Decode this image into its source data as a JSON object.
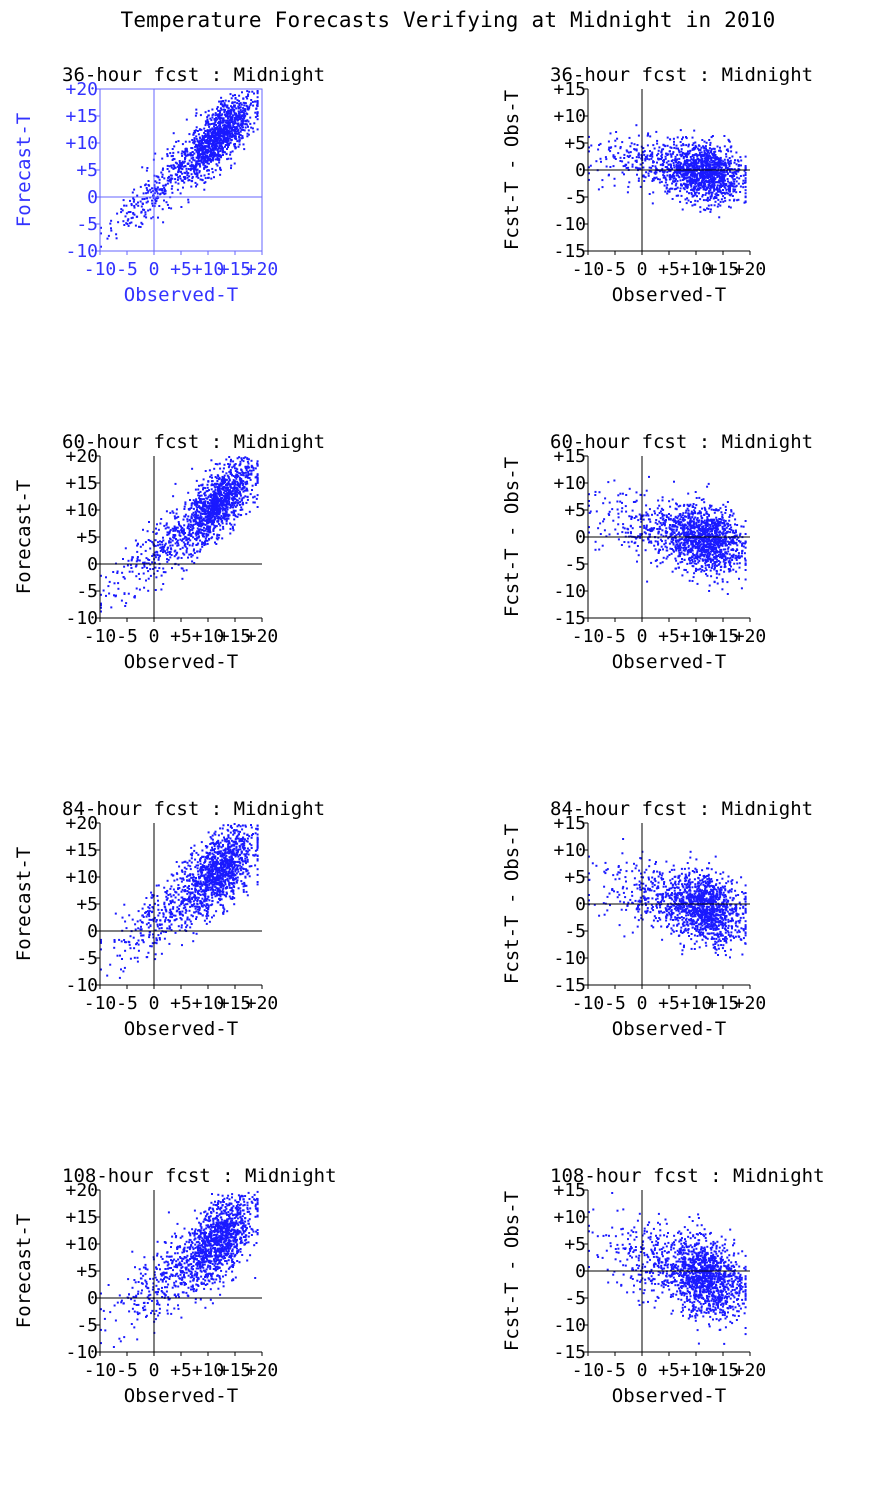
{
  "figure_title": "Temperature Forecasts Verifying at Midnight in 2010",
  "colors": {
    "points": "#1a1aff",
    "axis": "#000000",
    "highlight_axis": "#6666ff",
    "highlight_text": "#3333ff"
  },
  "chart_data": [
    {
      "type": "scatter",
      "panel": "36h-scatter",
      "title": "36-hour fcst : Midnight",
      "xlabel": "Observed-T",
      "ylabel": "Forecast-T",
      "xlim": [
        -10,
        20
      ],
      "ylim": [
        -10,
        20
      ],
      "xticks": [
        "-10",
        "-5",
        "0",
        "+5",
        "+10",
        "+15",
        "+20"
      ],
      "yticks": [
        "-10",
        "-5",
        "0",
        "+5",
        "+10",
        "+15",
        "+20"
      ],
      "highlighted": true,
      "grid": false,
      "series": [
        {
          "relation": "forecast vs observed",
          "approx_slope": 0.85,
          "approx_intercept": 1.5,
          "spread_sd": 2.6,
          "n_points_approx": 1500
        }
      ]
    },
    {
      "type": "scatter",
      "panel": "36h-error",
      "title": "36-hour fcst : Midnight",
      "xlabel": "Observed-T",
      "ylabel": "Fcst-T - Obs-T",
      "xlim": [
        -10,
        20
      ],
      "ylim": [
        -15,
        15
      ],
      "xticks": [
        "-10",
        "-5",
        "0",
        "+5",
        "+10",
        "+15",
        "+20"
      ],
      "yticks": [
        "-15",
        "-10",
        "-5",
        "0",
        "+5",
        "+10",
        "+15"
      ],
      "highlighted": false,
      "grid": false,
      "series": [
        {
          "relation": "error vs observed",
          "approx_slope": -0.15,
          "approx_intercept": 1.5,
          "spread_sd": 2.6,
          "n_points_approx": 1500
        }
      ]
    },
    {
      "type": "scatter",
      "panel": "60h-scatter",
      "title": "60-hour fcst : Midnight",
      "xlabel": "Observed-T",
      "ylabel": "Forecast-T",
      "xlim": [
        -10,
        20
      ],
      "ylim": [
        -10,
        20
      ],
      "xticks": [
        "-10",
        "-5",
        "0",
        "+5",
        "+10",
        "+15",
        "+20"
      ],
      "yticks": [
        "-10",
        "-5",
        "0",
        "+5",
        "+10",
        "+15",
        "+20"
      ],
      "highlighted": false,
      "grid": false,
      "series": [
        {
          "relation": "forecast vs observed",
          "approx_slope": 0.8,
          "approx_intercept": 2.0,
          "spread_sd": 3.0,
          "n_points_approx": 1500
        }
      ]
    },
    {
      "type": "scatter",
      "panel": "60h-error",
      "title": "60-hour fcst : Midnight",
      "xlabel": "Observed-T",
      "ylabel": "Fcst-T - Obs-T",
      "xlim": [
        -10,
        20
      ],
      "ylim": [
        -15,
        15
      ],
      "xticks": [
        "-10",
        "-5",
        "0",
        "+5",
        "+10",
        "+15",
        "+20"
      ],
      "yticks": [
        "-15",
        "-10",
        "-5",
        "0",
        "+5",
        "+10",
        "+15"
      ],
      "highlighted": false,
      "grid": false,
      "series": [
        {
          "relation": "error vs observed",
          "approx_slope": -0.2,
          "approx_intercept": 2.0,
          "spread_sd": 3.0,
          "n_points_approx": 1500
        }
      ]
    },
    {
      "type": "scatter",
      "panel": "84h-scatter",
      "title": "84-hour fcst : Midnight",
      "xlabel": "Observed-T",
      "ylabel": "Forecast-T",
      "xlim": [
        -10,
        20
      ],
      "ylim": [
        -10,
        20
      ],
      "xticks": [
        "-10",
        "-5",
        "0",
        "+5",
        "+10",
        "+15",
        "+20"
      ],
      "yticks": [
        "-10",
        "-5",
        "0",
        "+5",
        "+10",
        "+15",
        "+20"
      ],
      "highlighted": false,
      "grid": false,
      "series": [
        {
          "relation": "forecast vs observed",
          "approx_slope": 0.75,
          "approx_intercept": 2.3,
          "spread_sd": 3.3,
          "n_points_approx": 1500
        }
      ]
    },
    {
      "type": "scatter",
      "panel": "84h-error",
      "title": "84-hour fcst : Midnight",
      "xlabel": "Observed-T",
      "ylabel": "Fcst-T - Obs-T",
      "xlim": [
        -10,
        20
      ],
      "ylim": [
        -15,
        15
      ],
      "xticks": [
        "-10",
        "-5",
        "0",
        "+5",
        "+10",
        "+15",
        "+20"
      ],
      "yticks": [
        "-15",
        "-10",
        "-5",
        "0",
        "+5",
        "+10",
        "+15"
      ],
      "highlighted": false,
      "grid": false,
      "series": [
        {
          "relation": "error vs observed",
          "approx_slope": -0.25,
          "approx_intercept": 2.3,
          "spread_sd": 3.3,
          "n_points_approx": 1500
        }
      ]
    },
    {
      "type": "scatter",
      "panel": "108h-scatter",
      "title": "108-hour fcst : Midnight",
      "xlabel": "Observed-T",
      "ylabel": "Forecast-T",
      "xlim": [
        -10,
        20
      ],
      "ylim": [
        -10,
        20
      ],
      "xticks": [
        "-10",
        "-5",
        "0",
        "+5",
        "+10",
        "+15",
        "+20"
      ],
      "yticks": [
        "-10",
        "-5",
        "0",
        "+5",
        "+10",
        "+15",
        "+20"
      ],
      "highlighted": false,
      "grid": false,
      "series": [
        {
          "relation": "forecast vs observed",
          "approx_slope": 0.7,
          "approx_intercept": 2.5,
          "spread_sd": 3.6,
          "n_points_approx": 1500
        }
      ]
    },
    {
      "type": "scatter",
      "panel": "108h-error",
      "title": "108-hour fcst : Midnight",
      "xlabel": "Observed-T",
      "ylabel": "Fcst-T - Obs-T",
      "xlim": [
        -10,
        20
      ],
      "ylim": [
        -15,
        15
      ],
      "xticks": [
        "-10",
        "-5",
        "0",
        "+5",
        "+10",
        "+15",
        "+20"
      ],
      "yticks": [
        "-15",
        "-10",
        "-5",
        "0",
        "+5",
        "+10",
        "+15"
      ],
      "highlighted": false,
      "grid": false,
      "series": [
        {
          "relation": "error vs observed",
          "approx_slope": -0.3,
          "approx_intercept": 2.5,
          "spread_sd": 3.6,
          "n_points_approx": 1500
        }
      ]
    }
  ]
}
